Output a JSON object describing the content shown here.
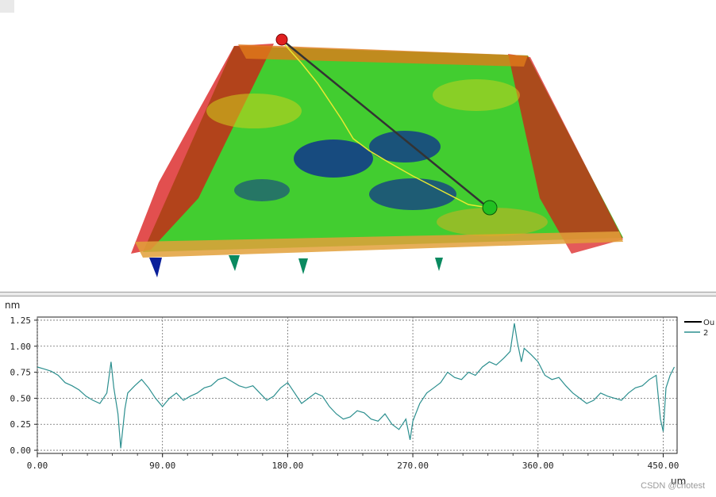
{
  "colors": {
    "profile_line": "#2c8f8f",
    "legend_line_1": "#000000",
    "legend_line_2": "#2c8f8f",
    "grid": "#6c6c6c",
    "surface_low": "#0a1f9a",
    "surface_mid": "#2ec81a",
    "surface_high": "#d81414",
    "surface_edge": "#e08a8a",
    "marker_start": "#e02020",
    "marker_end": "#22c022"
  },
  "watermark": "CSDN @chotest",
  "chart_data": {
    "type": "line",
    "ylabel": "nm",
    "xlabel": "um",
    "xlim": [
      0,
      460
    ],
    "ylim": [
      -0.03,
      1.28
    ],
    "x_ticks": [
      "0.00",
      "90.00",
      "180.00",
      "270.00",
      "360.00",
      "450.00"
    ],
    "x_tick_values": [
      0,
      90,
      180,
      270,
      360,
      450
    ],
    "y_ticks": [
      "1.25",
      "1.00",
      "0.75",
      "0.50",
      "0.25",
      "0.00"
    ],
    "y_tick_values": [
      1.25,
      1.0,
      0.75,
      0.5,
      0.25,
      0.0
    ],
    "grid": true,
    "legend": {
      "placement": "right",
      "entries": [
        "Ou",
        "2"
      ]
    },
    "series": [
      {
        "name": "2",
        "x": [
          0,
          5,
          10,
          15,
          20,
          25,
          30,
          35,
          40,
          45,
          50,
          53,
          55,
          58,
          60,
          63,
          65,
          70,
          75,
          80,
          85,
          90,
          95,
          100,
          105,
          110,
          115,
          120,
          125,
          130,
          135,
          140,
          145,
          150,
          155,
          160,
          165,
          170,
          175,
          180,
          185,
          190,
          195,
          200,
          205,
          210,
          215,
          220,
          225,
          230,
          235,
          240,
          245,
          250,
          255,
          260,
          265,
          268,
          270,
          275,
          280,
          285,
          290,
          295,
          300,
          305,
          310,
          315,
          320,
          325,
          330,
          335,
          340,
          343,
          345,
          348,
          350,
          355,
          360,
          365,
          370,
          375,
          380,
          385,
          390,
          395,
          400,
          405,
          410,
          415,
          420,
          425,
          430,
          435,
          440,
          445,
          448,
          450,
          452,
          455,
          458
        ],
        "values": [
          0.8,
          0.78,
          0.76,
          0.72,
          0.65,
          0.62,
          0.58,
          0.52,
          0.48,
          0.45,
          0.55,
          0.85,
          0.6,
          0.35,
          0.02,
          0.4,
          0.55,
          0.62,
          0.68,
          0.6,
          0.5,
          0.42,
          0.5,
          0.55,
          0.48,
          0.52,
          0.55,
          0.6,
          0.62,
          0.68,
          0.7,
          0.66,
          0.62,
          0.6,
          0.62,
          0.55,
          0.48,
          0.52,
          0.6,
          0.65,
          0.55,
          0.45,
          0.5,
          0.55,
          0.52,
          0.42,
          0.35,
          0.3,
          0.32,
          0.38,
          0.36,
          0.3,
          0.28,
          0.35,
          0.25,
          0.2,
          0.3,
          0.1,
          0.28,
          0.45,
          0.55,
          0.6,
          0.65,
          0.75,
          0.7,
          0.68,
          0.75,
          0.72,
          0.8,
          0.85,
          0.82,
          0.88,
          0.95,
          1.22,
          1.05,
          0.85,
          0.98,
          0.92,
          0.85,
          0.72,
          0.68,
          0.7,
          0.62,
          0.55,
          0.5,
          0.45,
          0.48,
          0.55,
          0.52,
          0.5,
          0.48,
          0.55,
          0.6,
          0.62,
          0.68,
          0.72,
          0.3,
          0.18,
          0.6,
          0.72,
          0.8
        ]
      }
    ]
  }
}
